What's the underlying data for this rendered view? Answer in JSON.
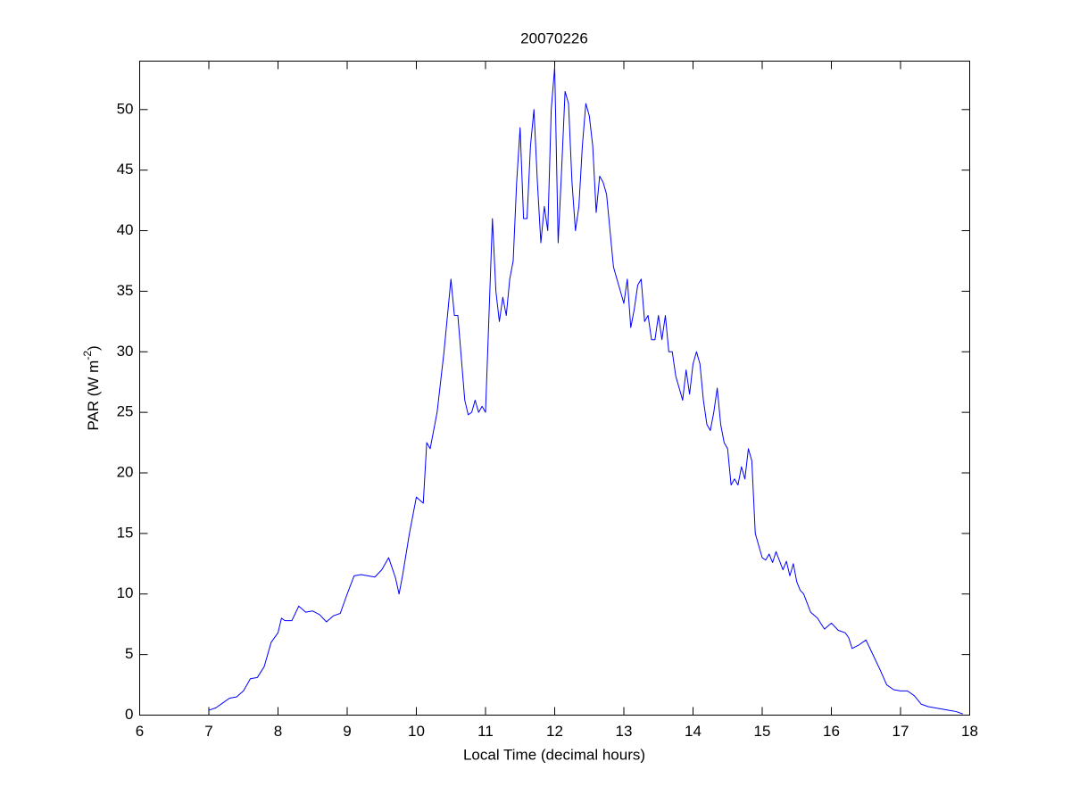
{
  "chart_data": {
    "type": "line",
    "title": "20070226",
    "x_label": "Local Time (decimal hours)",
    "y_label": [
      "PAR (W m",
      "-2",
      ")"
    ],
    "color": "#0000ff",
    "xlim": [
      6,
      18
    ],
    "xticks": [
      6,
      7,
      8,
      9,
      10,
      11,
      12,
      13,
      14,
      15,
      16,
      17,
      18
    ],
    "ylim": [
      0,
      54
    ],
    "yticks": [
      0,
      5,
      10,
      15,
      20,
      25,
      30,
      35,
      40,
      45,
      50
    ],
    "grid": false,
    "x": [
      7.0,
      7.1,
      7.2,
      7.3,
      7.4,
      7.5,
      7.6,
      7.7,
      7.8,
      7.9,
      8.0,
      8.05,
      8.1,
      8.2,
      8.3,
      8.4,
      8.5,
      8.6,
      8.7,
      8.8,
      8.9,
      9.0,
      9.1,
      9.2,
      9.3,
      9.4,
      9.5,
      9.6,
      9.7,
      9.75,
      9.8,
      9.9,
      10.0,
      10.1,
      10.15,
      10.2,
      10.3,
      10.4,
      10.5,
      10.55,
      10.6,
      10.7,
      10.75,
      10.8,
      10.85,
      10.9,
      10.95,
      11.0,
      11.05,
      11.1,
      11.15,
      11.2,
      11.25,
      11.3,
      11.35,
      11.4,
      11.45,
      11.5,
      11.55,
      11.6,
      11.65,
      11.7,
      11.75,
      11.8,
      11.85,
      11.9,
      11.95,
      12.0,
      12.05,
      12.1,
      12.15,
      12.2,
      12.25,
      12.3,
      12.35,
      12.4,
      12.45,
      12.5,
      12.55,
      12.6,
      12.65,
      12.7,
      12.75,
      12.8,
      12.85,
      12.9,
      12.95,
      13.0,
      13.05,
      13.1,
      13.15,
      13.2,
      13.25,
      13.3,
      13.35,
      13.4,
      13.45,
      13.5,
      13.55,
      13.6,
      13.65,
      13.7,
      13.75,
      13.8,
      13.85,
      13.9,
      13.95,
      14.0,
      14.05,
      14.1,
      14.15,
      14.2,
      14.25,
      14.3,
      14.35,
      14.4,
      14.45,
      14.5,
      14.55,
      14.6,
      14.65,
      14.7,
      14.75,
      14.8,
      14.85,
      14.9,
      14.95,
      15.0,
      15.05,
      15.1,
      15.15,
      15.2,
      15.3,
      15.35,
      15.4,
      15.45,
      15.5,
      15.55,
      15.6,
      15.7,
      15.8,
      15.9,
      16.0,
      16.1,
      16.2,
      16.25,
      16.3,
      16.4,
      16.5,
      16.6,
      16.7,
      16.8,
      16.9,
      17.0,
      17.1,
      17.2,
      17.3,
      17.4,
      17.5,
      17.6,
      17.7,
      17.8,
      17.9
    ],
    "values": [
      0.4,
      0.6,
      1.0,
      1.4,
      1.5,
      2.0,
      3.0,
      3.1,
      4.0,
      6.0,
      6.8,
      8.0,
      7.8,
      7.8,
      9.0,
      8.5,
      8.6,
      8.3,
      7.7,
      8.2,
      8.4,
      10.0,
      11.5,
      11.6,
      11.5,
      11.4,
      12.0,
      13.0,
      11.3,
      10.0,
      11.5,
      15.0,
      18.0,
      17.5,
      22.5,
      22.0,
      25.0,
      30.0,
      36.0,
      33.0,
      33.0,
      26.0,
      24.8,
      25.0,
      26.0,
      25.0,
      25.5,
      25.0,
      33.0,
      41.0,
      35.0,
      32.5,
      34.5,
      33.0,
      36.0,
      37.5,
      44.0,
      48.5,
      41.0,
      41.0,
      47.0,
      50.0,
      44.0,
      39.0,
      42.0,
      40.0,
      50.0,
      53.5,
      39.0,
      45.0,
      51.5,
      50.5,
      44.0,
      40.0,
      42.0,
      47.0,
      50.5,
      49.5,
      47.0,
      41.5,
      44.5,
      44.0,
      43.0,
      40.0,
      37.0,
      36.0,
      35.0,
      34.0,
      36.0,
      32.0,
      33.5,
      35.5,
      36.0,
      32.5,
      33.0,
      31.0,
      31.0,
      33.0,
      31.0,
      33.0,
      30.0,
      30.0,
      28.0,
      27.0,
      26.0,
      28.5,
      26.5,
      29.0,
      30.0,
      29.0,
      26.0,
      24.0,
      23.5,
      25.0,
      27.0,
      24.0,
      22.5,
      22.0,
      19.0,
      19.5,
      19.0,
      20.5,
      19.5,
      22.0,
      21.0,
      15.0,
      14.0,
      13.0,
      12.8,
      13.3,
      12.6,
      13.5,
      12.0,
      12.7,
      11.5,
      12.5,
      11.0,
      10.3,
      10.0,
      8.5,
      8.0,
      7.1,
      7.6,
      7.0,
      6.8,
      6.4,
      5.5,
      5.8,
      6.2,
      5.0,
      3.8,
      2.5,
      2.1,
      2.0,
      2.0,
      1.6,
      0.9,
      0.7,
      0.6,
      0.5,
      0.4,
      0.3,
      0.1
    ]
  }
}
